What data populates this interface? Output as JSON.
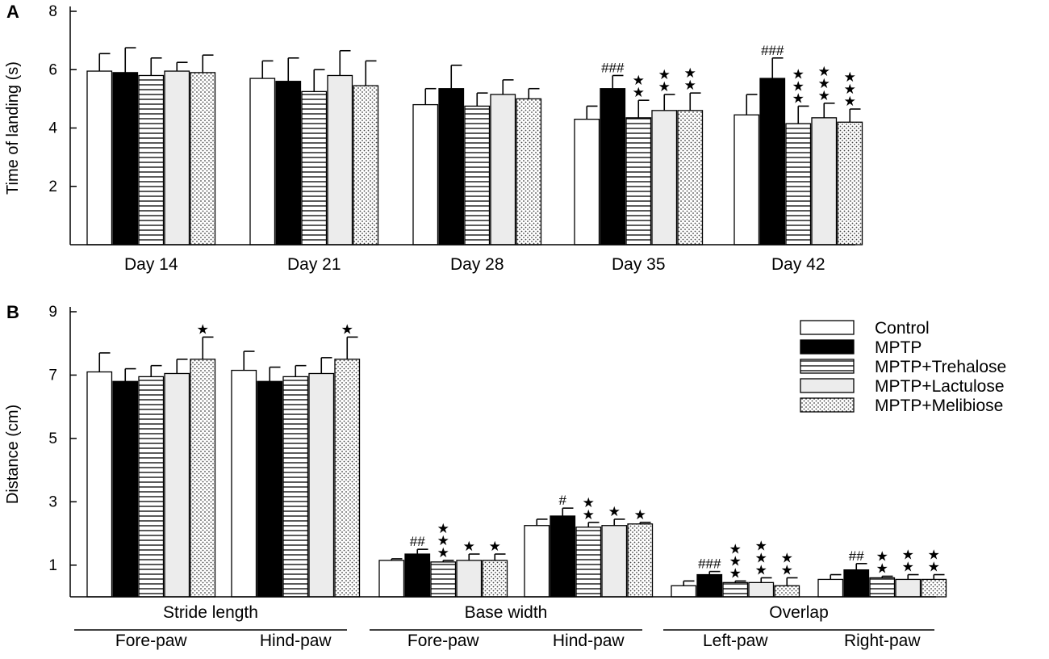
{
  "colors": {
    "ink": "#000000",
    "paper": "#ffffff",
    "lactulose": "#ececec"
  },
  "chart_data": [
    {
      "panel": "A",
      "type": "bar",
      "ylabel": "Time of landing (s)",
      "ylim": [
        0,
        8
      ],
      "yticks": [
        "2",
        "4",
        "6",
        "8"
      ],
      "yticks_values": [
        2,
        4,
        6,
        8
      ],
      "categories": [
        "Day 14",
        "Day 21",
        "Day 28",
        "Day 35",
        "Day 42"
      ],
      "series": [
        {
          "name": "Control",
          "pattern": "white",
          "values": [
            5.95,
            5.7,
            4.8,
            4.3,
            4.45
          ],
          "errors": [
            0.6,
            0.6,
            0.55,
            0.45,
            0.7
          ]
        },
        {
          "name": "MPTP",
          "pattern": "black",
          "values": [
            5.9,
            5.6,
            5.35,
            5.35,
            5.7
          ],
          "errors": [
            0.85,
            0.8,
            0.8,
            0.45,
            0.7
          ]
        },
        {
          "name": "MPTP+Trehalose",
          "pattern": "stripes",
          "values": [
            5.8,
            5.25,
            4.75,
            4.35,
            4.15
          ],
          "errors": [
            0.6,
            0.75,
            0.45,
            0.6,
            0.6
          ]
        },
        {
          "name": "MPTP+Lactulose",
          "pattern": "light",
          "values": [
            5.95,
            5.8,
            5.15,
            4.6,
            4.35
          ],
          "errors": [
            0.3,
            0.85,
            0.5,
            0.55,
            0.5
          ]
        },
        {
          "name": "MPTP+Melibiose",
          "pattern": "dots",
          "values": [
            5.9,
            5.45,
            5.0,
            4.6,
            4.2
          ],
          "errors": [
            0.6,
            0.85,
            0.35,
            0.6,
            0.45
          ]
        }
      ],
      "annotations": [
        {
          "category": 3,
          "series": 1,
          "label": "###"
        },
        {
          "category": 3,
          "series": 2,
          "label": "★★"
        },
        {
          "category": 3,
          "series": 3,
          "label": "★★"
        },
        {
          "category": 3,
          "series": 4,
          "label": "★★"
        },
        {
          "category": 4,
          "series": 1,
          "label": "###"
        },
        {
          "category": 4,
          "series": 2,
          "label": "★★★"
        },
        {
          "category": 4,
          "series": 3,
          "label": "★★★"
        },
        {
          "category": 4,
          "series": 4,
          "label": "★★★"
        }
      ]
    },
    {
      "panel": "B",
      "type": "bar",
      "ylabel": "Distance (cm)",
      "ylim": [
        0,
        9
      ],
      "yticks": [
        "1",
        "3",
        "5",
        "7",
        "9"
      ],
      "yticks_values": [
        1,
        3,
        5,
        7,
        9
      ],
      "categories": [
        "Fore-paw",
        "Hind-paw",
        "Fore-paw",
        "Hind-paw",
        "Left-paw",
        "Right-paw"
      ],
      "groups": [
        {
          "label": "Stride length",
          "categories": [
            0,
            1
          ]
        },
        {
          "label": "Base width",
          "categories": [
            2,
            3
          ]
        },
        {
          "label": "Overlap",
          "categories": [
            4,
            5
          ]
        }
      ],
      "legend": [
        "Control",
        "MPTP",
        "MPTP+Trehalose",
        "MPTP+Lactulose",
        "MPTP+Melibiose"
      ],
      "series": [
        {
          "name": "Control",
          "pattern": "white",
          "values": [
            7.1,
            7.15,
            1.15,
            2.25,
            0.35,
            0.55
          ],
          "errors": [
            0.6,
            0.6,
            0.05,
            0.2,
            0.15,
            0.15
          ]
        },
        {
          "name": "MPTP",
          "pattern": "black",
          "values": [
            6.8,
            6.8,
            1.35,
            2.55,
            0.7,
            0.85
          ],
          "errors": [
            0.4,
            0.45,
            0.15,
            0.25,
            0.1,
            0.2
          ]
        },
        {
          "name": "MPTP+Trehalose",
          "pattern": "stripes",
          "values": [
            6.95,
            6.95,
            1.1,
            2.2,
            0.45,
            0.6
          ],
          "errors": [
            0.35,
            0.35,
            0.05,
            0.15,
            0.05,
            0.05
          ]
        },
        {
          "name": "MPTP+Lactulose",
          "pattern": "light",
          "values": [
            7.05,
            7.05,
            1.15,
            2.25,
            0.45,
            0.55
          ],
          "errors": [
            0.45,
            0.5,
            0.2,
            0.2,
            0.15,
            0.15
          ]
        },
        {
          "name": "MPTP+Melibiose",
          "pattern": "dots",
          "values": [
            7.5,
            7.5,
            1.15,
            2.3,
            0.35,
            0.55
          ],
          "errors": [
            0.7,
            0.7,
            0.2,
            0.05,
            0.25,
            0.15
          ]
        }
      ],
      "annotations": [
        {
          "category": 0,
          "series": 4,
          "label": "★"
        },
        {
          "category": 1,
          "series": 4,
          "label": "★"
        },
        {
          "category": 2,
          "series": 1,
          "label": "##"
        },
        {
          "category": 2,
          "series": 2,
          "label": "★★★"
        },
        {
          "category": 2,
          "series": 3,
          "label": "★"
        },
        {
          "category": 2,
          "series": 4,
          "label": "★"
        },
        {
          "category": 3,
          "series": 1,
          "label": "#"
        },
        {
          "category": 3,
          "series": 2,
          "label": "★★"
        },
        {
          "category": 3,
          "series": 3,
          "label": "★"
        },
        {
          "category": 3,
          "series": 4,
          "label": "★"
        },
        {
          "category": 4,
          "series": 1,
          "label": "###"
        },
        {
          "category": 4,
          "series": 2,
          "label": "★★★"
        },
        {
          "category": 4,
          "series": 3,
          "label": "★★★"
        },
        {
          "category": 4,
          "series": 4,
          "label": "★★"
        },
        {
          "category": 5,
          "series": 1,
          "label": "##"
        },
        {
          "category": 5,
          "series": 2,
          "label": "★★"
        },
        {
          "category": 5,
          "series": 3,
          "label": "★★"
        },
        {
          "category": 5,
          "series": 4,
          "label": "★★"
        }
      ]
    }
  ]
}
